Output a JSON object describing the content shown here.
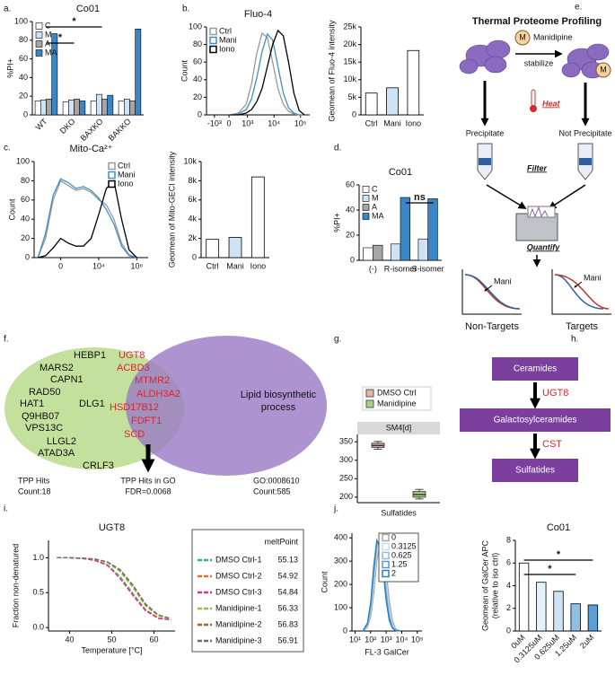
{
  "panel_labels": [
    "a.",
    "b.",
    "c.",
    "d.",
    "e.",
    "f.",
    "g.",
    "h.",
    "i.",
    "j."
  ],
  "tpp": {
    "title": "Thermal Proteome Profiling",
    "drug_symbol": "M",
    "drug": "Manidipine",
    "stabilize": "stabilize",
    "heat": "Heat",
    "precipitate": "Precipitate",
    "not_precipitate": "Not Precipitate",
    "filter": "Filter",
    "quantify": "Quantify",
    "mani": "Mani",
    "non_targets": "Non-Targets",
    "targets": "Targets"
  },
  "venn": {
    "tpp_only": [
      "HEBP1",
      "MARS2",
      "CAPN1",
      "RAD50",
      "DLG1",
      "HAT1",
      "Q9HB07",
      "VPS13C",
      "LLGL2",
      "ATAD3A",
      "CRLF3"
    ],
    "overlap": [
      "UGT8",
      "ACBD3",
      "MTMR2",
      "ALDH3A2",
      "HSD17B12",
      "FDFT1",
      "SCD"
    ],
    "go_label": [
      "Lipid biosynthetic",
      "process"
    ],
    "tpp_label": "TPP Hits",
    "tpp_count": "Count:18",
    "go_id": "GO:0008610",
    "go_count": "Count:585",
    "result": "TPP Hits in GO",
    "fdr": "FDR=0.0068"
  },
  "pathway": {
    "nodes": [
      "Ceramides",
      "Galactosylceramides",
      "Sulfatides"
    ],
    "enzymes": [
      "UGT8",
      "CST"
    ]
  },
  "chart_data": [
    {
      "type": "bar",
      "title": "Co01",
      "ylabel": "%PI+",
      "categories": [
        "WT",
        "DKO",
        "BAXKO",
        "BAKKO"
      ],
      "series": [
        {
          "name": "C",
          "color": "#ffffff",
          "values": [
            15,
            14,
            15,
            15
          ]
        },
        {
          "name": "M",
          "color": "#cfe3f4",
          "values": [
            16,
            16,
            22,
            17
          ]
        },
        {
          "name": "A",
          "color": "#a6a6a6",
          "values": [
            17,
            17,
            17,
            15
          ]
        },
        {
          "name": "MA",
          "color": "#3a87c8",
          "values": [
            87,
            15,
            21,
            92
          ]
        }
      ],
      "ylim": [
        0,
        100
      ],
      "yticks": [
        0,
        20,
        40,
        60,
        80,
        100
      ],
      "legend": "upper left",
      "annotations": [
        "*",
        "*"
      ]
    },
    {
      "type": "line",
      "title": "Fluo-4",
      "ylabel": "Count",
      "x": [
        0.6,
        0.9,
        1.2,
        1.4,
        1.6,
        1.8,
        2.0,
        2.2,
        2.4,
        2.6,
        2.8,
        3.0,
        3.2,
        3.4
      ],
      "xlim": [
        -0.3,
        3.6
      ],
      "xticks": [
        {
          "value": 0,
          "label": "-10³"
        },
        {
          "value": 0.55,
          "label": "0"
        },
        {
          "value": 1.25,
          "label": "10³"
        },
        {
          "value": 2.25,
          "label": "10⁴"
        },
        {
          "value": 3.25,
          "label": "10⁵"
        }
      ],
      "ylim": [
        0,
        100
      ],
      "yticks": [
        0,
        20,
        40,
        60,
        80,
        100
      ],
      "legend": "upper left",
      "series": [
        {
          "name": "Ctrl",
          "color": "#9a9a9a",
          "values": [
            0,
            2,
            12,
            35,
            70,
            93,
            88,
            60,
            30,
            12,
            4,
            1,
            0,
            0
          ]
        },
        {
          "name": "Mani",
          "color": "#3f8fcb",
          "values": [
            0,
            1,
            6,
            18,
            42,
            72,
            92,
            85,
            55,
            25,
            8,
            2,
            0,
            0
          ]
        },
        {
          "name": "Iono",
          "color": "#000000",
          "values": [
            0,
            0,
            2,
            6,
            15,
            30,
            55,
            80,
            96,
            90,
            60,
            25,
            5,
            0
          ]
        }
      ]
    },
    {
      "type": "bar",
      "ylabel": "Geomean of Fluo-4 intensity",
      "categories": [
        "Ctrl",
        "Mani",
        "Iono"
      ],
      "values": [
        6200,
        7700,
        18300
      ],
      "colors": [
        "#ffffff",
        "#cfe3f4",
        "#ffffff"
      ],
      "ylim": [
        0,
        25000
      ],
      "yticks": [
        0,
        {
          "value": 5000,
          "label": "5k"
        },
        {
          "value": 10000,
          "label": "10k"
        },
        {
          "value": 15000,
          "label": "15k"
        },
        {
          "value": 20000,
          "label": "20k"
        },
        {
          "value": 25000,
          "label": "25k"
        }
      ]
    },
    {
      "type": "line",
      "title": "Mito-Ca²⁺",
      "ylabel": "Count",
      "x": [
        -0.6,
        -0.4,
        -0.2,
        0,
        0.2,
        0.4,
        0.6,
        0.8,
        1.0,
        1.2,
        1.4,
        1.6,
        1.8,
        2.0
      ],
      "xlim": [
        -0.7,
        2.3
      ],
      "xticks": [
        {
          "value": 0,
          "label": "0"
        },
        {
          "value": 1,
          "label": "10⁴"
        },
        {
          "value": 2,
          "label": "10⁶"
        }
      ],
      "ylim": [
        0,
        100
      ],
      "yticks": [
        0,
        20,
        40,
        60,
        80,
        100
      ],
      "legend": "upper right",
      "series": [
        {
          "name": "Ctrl",
          "color": "#9a9a9a",
          "values": [
            0,
            20,
            60,
            80,
            75,
            70,
            72,
            68,
            60,
            55,
            40,
            15,
            3,
            0
          ]
        },
        {
          "name": "Mani",
          "color": "#3f8fcb",
          "values": [
            0,
            25,
            65,
            82,
            78,
            72,
            74,
            70,
            62,
            50,
            35,
            12,
            2,
            0
          ]
        },
        {
          "name": "Iono",
          "color": "#000000",
          "values": [
            0,
            2,
            10,
            20,
            15,
            12,
            12,
            20,
            45,
            72,
            80,
            40,
            8,
            0
          ]
        }
      ]
    },
    {
      "type": "bar",
      "ylabel": "Geomean of Mito-GECI intensity",
      "categories": [
        "Ctrl",
        "Mani",
        "Iono"
      ],
      "values": [
        1900,
        2100,
        8400
      ],
      "colors": [
        "#ffffff",
        "#cfe3f4",
        "#ffffff"
      ],
      "ylim": [
        0,
        10000
      ],
      "yticks": [
        0,
        {
          "value": 2000,
          "label": "2k"
        },
        {
          "value": 4000,
          "label": "4k"
        },
        {
          "value": 6000,
          "label": "6k"
        },
        {
          "value": 8000,
          "label": "8k"
        },
        {
          "value": 10000,
          "label": "10k"
        }
      ]
    },
    {
      "type": "bar",
      "title": "Co01",
      "ylabel": "%PI+",
      "categories": [
        "(-)",
        "R-isomer",
        "S-isomer"
      ],
      "series": [
        {
          "name": "C",
          "color": "#ffffff",
          "values": [
            10,
            null,
            null
          ]
        },
        {
          "name": "M",
          "color": "#cfe3f4",
          "values": [
            null,
            13,
            17
          ]
        },
        {
          "name": "A",
          "color": "#a6a6a6",
          "values": [
            12,
            null,
            null
          ]
        },
        {
          "name": "MA",
          "color": "#3a87c8",
          "values": [
            null,
            50,
            49
          ]
        }
      ],
      "ylim": [
        0,
        60
      ],
      "yticks": [
        0,
        20,
        40,
        60
      ],
      "legend": "upper left",
      "annotations": [
        "ns"
      ]
    },
    {
      "type": "box",
      "facet": "SM4[d]",
      "xlabel": "Sulfatides",
      "ylim": [
        185,
        370
      ],
      "yticks": [
        200,
        250,
        300,
        350
      ],
      "legend": "top",
      "series": [
        {
          "name": "DMSO Ctrl",
          "color": "#e9b3a6",
          "min": 330,
          "q1": 335,
          "median": 340,
          "q3": 346,
          "max": 351
        },
        {
          "name": "Manidipine",
          "color": "#a9d37f",
          "min": 195,
          "q1": 200,
          "median": 207,
          "q3": 215,
          "max": 221
        }
      ]
    },
    {
      "type": "line",
      "title": "UGT8",
      "xlabel": "Temperature [°C]",
      "ylabel": "Fraction non-denatured",
      "x": [
        37,
        40,
        43,
        46,
        49,
        52,
        55,
        58,
        61,
        64
      ],
      "xlim": [
        35,
        65
      ],
      "xticks": [
        40,
        50,
        60
      ],
      "ylim": [
        -0.05,
        1.25
      ],
      "yticks": [
        {
          "value": 0,
          "label": "0.0"
        },
        0.5,
        {
          "value": 1,
          "label": "1.0"
        }
      ],
      "legend": "outside right",
      "legend_title": "meltPoint",
      "dashed": true,
      "series": [
        {
          "name": "DMSO Ctrl-1",
          "color": "#2fb58a",
          "meltPoint": 55.13,
          "values": [
            1.0,
            1.0,
            0.99,
            0.97,
            0.9,
            0.73,
            0.49,
            0.26,
            0.14,
            0.11
          ]
        },
        {
          "name": "DMSO Ctrl-2",
          "color": "#e8702a",
          "meltPoint": 54.92,
          "values": [
            1.0,
            1.0,
            0.99,
            0.97,
            0.89,
            0.71,
            0.47,
            0.25,
            0.14,
            0.11
          ]
        },
        {
          "name": "DMSO Ctrl-3",
          "color": "#d6339b",
          "meltPoint": 54.84,
          "values": [
            1.0,
            1.0,
            0.99,
            0.96,
            0.89,
            0.7,
            0.46,
            0.24,
            0.13,
            0.11
          ]
        },
        {
          "name": "Manidipine-1",
          "color": "#8cc63f",
          "meltPoint": 56.33,
          "values": [
            1.0,
            1.0,
            0.995,
            0.98,
            0.93,
            0.8,
            0.57,
            0.31,
            0.17,
            0.12
          ]
        },
        {
          "name": "Manidipine-2",
          "color": "#a0662a",
          "meltPoint": 56.83,
          "values": [
            1.0,
            1.0,
            0.995,
            0.98,
            0.94,
            0.82,
            0.6,
            0.33,
            0.18,
            0.13
          ]
        },
        {
          "name": "Manidipine-3",
          "color": "#6d6d6d",
          "meltPoint": 56.91,
          "values": [
            1.0,
            1.0,
            0.995,
            0.985,
            0.94,
            0.83,
            0.61,
            0.34,
            0.18,
            0.13
          ]
        }
      ]
    },
    {
      "type": "line",
      "xlabel": "FL-3 GalCer",
      "ylabel": "Count",
      "x": [
        1.5,
        1.8,
        2.0,
        2.2,
        2.4,
        2.6,
        2.8,
        3.0,
        3.2,
        3.4,
        3.6,
        3.9
      ],
      "xlim": [
        0.8,
        5.3
      ],
      "xticks": [
        {
          "value": 1,
          "label": "10¹"
        },
        {
          "value": 2,
          "label": "10²"
        },
        {
          "value": 3,
          "label": "10³"
        },
        {
          "value": 4,
          "label": "10⁴"
        },
        {
          "value": 5,
          "label": "10⁵"
        }
      ],
      "ylim": [
        0,
        420
      ],
      "yticks": [
        0,
        100,
        200,
        300,
        400
      ],
      "legend": "upper right",
      "series": [
        {
          "name": "0",
          "color": "#a8a8a8",
          "values": [
            0,
            15,
            60,
            160,
            300,
            380,
            360,
            260,
            130,
            45,
            10,
            0
          ]
        },
        {
          "name": "0.3125",
          "color": "#c4ddf0",
          "values": [
            0,
            20,
            80,
            200,
            340,
            400,
            330,
            210,
            90,
            30,
            5,
            0
          ]
        },
        {
          "name": "0.625",
          "color": "#8bbde0",
          "values": [
            0,
            25,
            90,
            230,
            360,
            390,
            310,
            180,
            70,
            20,
            4,
            0
          ]
        },
        {
          "name": "1.25",
          "color": "#4f9bd0",
          "values": [
            0,
            30,
            110,
            260,
            380,
            370,
            280,
            150,
            55,
            15,
            3,
            0
          ]
        },
        {
          "name": "2",
          "color": "#2a7fc0",
          "values": [
            0,
            35,
            120,
            280,
            390,
            360,
            260,
            130,
            45,
            12,
            2,
            0
          ]
        }
      ]
    },
    {
      "type": "bar",
      "title": "Co01",
      "ylabel": [
        "Geomean of GalCer APC",
        "(relative to iso ctrl)"
      ],
      "categories": [
        "0uM",
        "0.3125uM",
        "0.625uM",
        "1.25uM",
        "2uM"
      ],
      "values": [
        6.0,
        4.3,
        3.5,
        2.4,
        2.3
      ],
      "colors": [
        "#ffffff",
        "#e4f0fa",
        "#cfe3f4",
        "#8fbfe3",
        "#5a9fd6"
      ],
      "ylim": [
        0,
        8
      ],
      "yticks": [
        0,
        2,
        4,
        6,
        8
      ],
      "annotations": [
        "*",
        "*"
      ]
    }
  ]
}
